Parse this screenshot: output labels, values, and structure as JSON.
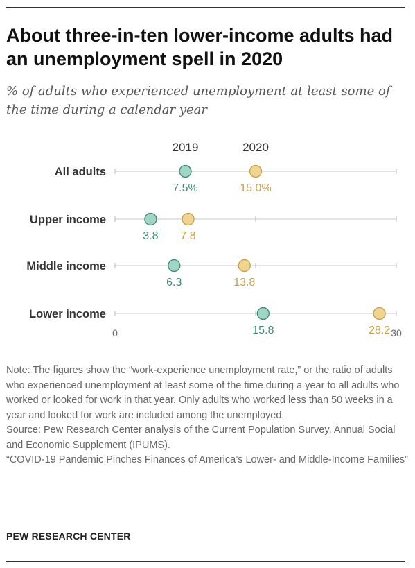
{
  "header": {
    "title": "About three-in-ten lower-income adults had an unemployment spell in 2020",
    "subtitle": "% of adults who experienced unemployment at least some of the time during a calendar year"
  },
  "chart_data": {
    "type": "dot",
    "title": "About three-in-ten lower-income adults had an unemployment spell in 2020",
    "subtitle": "% of adults who experienced unemployment at least some of the time during a calendar year",
    "categories": [
      "All adults",
      "Upper income",
      "Middle income",
      "Lower income"
    ],
    "series": [
      {
        "name": "2019",
        "values": [
          7.5,
          3.8,
          6.3,
          15.8
        ],
        "labels": [
          "7.5%",
          "3.8",
          "6.3",
          "15.8"
        ],
        "color": "#9fd6c6",
        "stroke": "#3d8a74",
        "text_color": "#3d8a74"
      },
      {
        "name": "2020",
        "values": [
          15.0,
          7.8,
          13.8,
          28.2
        ],
        "labels": [
          "15.0%",
          "7.8",
          "13.8",
          "28.2"
        ],
        "color": "#f0d591",
        "stroke": "#c7a046",
        "text_color": "#c7a046"
      }
    ],
    "xlim": [
      0,
      30
    ],
    "x_ticks": [
      0,
      30
    ],
    "grid": false,
    "legend": "top"
  },
  "notes": [
    "Note: The figures show the “work-experience unemployment rate,” or the ratio of adults who experienced unemployment at least some of the time during a year to all adults who worked or looked for work in that year. Only adults who worked less than 50 weeks in a year and looked for work are included among the unemployed.",
    "Source: Pew Research Center analysis of the Current Population Survey, Annual Social and Economic Supplement (IPUMS).",
    "“COVID-19 Pandemic Pinches Finances of America’s Lower- and Middle-Income Families”"
  ],
  "footer": {
    "org": "PEW RESEARCH CENTER"
  }
}
